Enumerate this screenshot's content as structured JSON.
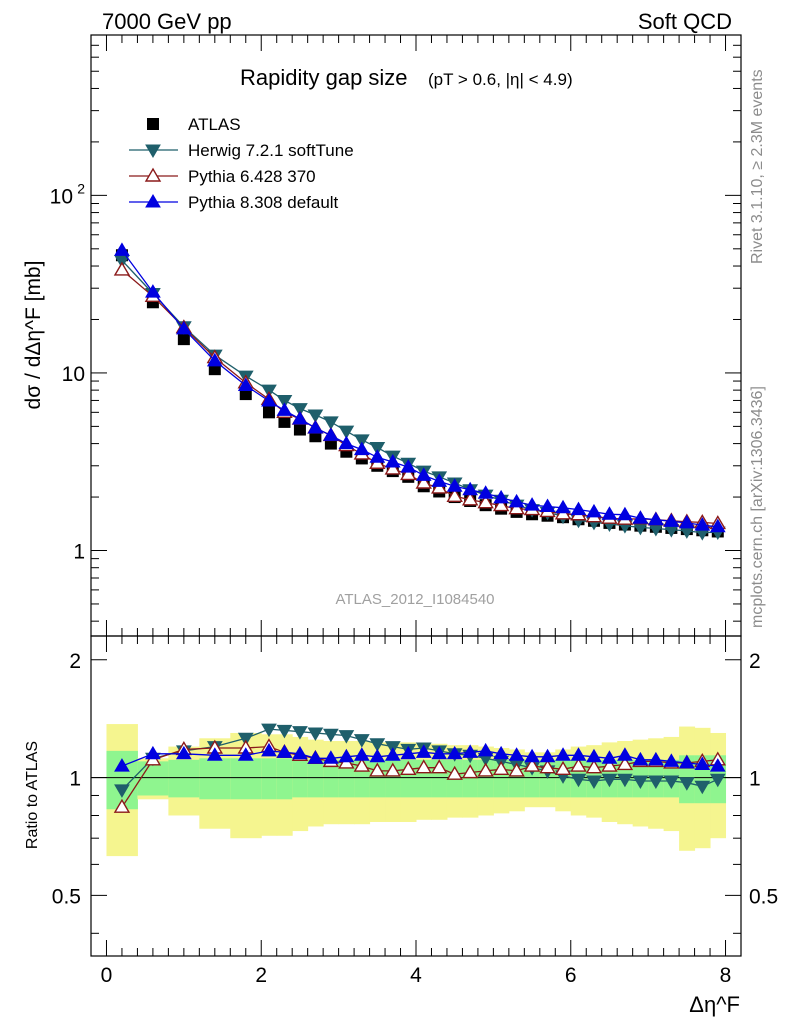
{
  "header": {
    "energy_label": "7000 GeV pp",
    "process_label": "Soft QCD",
    "watermark": "ATLAS_2012_I1084540",
    "side_rivet": "Rivet 3.1.10, ≥ 2.3M events",
    "side_mcplots": "mcplots.cern.ch [arXiv:1306.3436]"
  },
  "colors": {
    "atlas": "#000000",
    "herwig": "#1f5f6b",
    "pythia6": "#8b1a1a",
    "pythia8": "#0000e0",
    "band_inner": "#8ff58f",
    "band_outer": "#f5f58f"
  },
  "chart_data": [
    {
      "type": "scatter",
      "title": "Rapidity gap size",
      "subtitle": "(pT > 0.6, |η| < 4.9)",
      "xlabel": "Δη^F",
      "ylabel": "dσ / dΔη^F [mb]",
      "yscale": "log",
      "xlim": [
        -0.2,
        8.2
      ],
      "ylim": [
        0.33,
        800
      ],
      "yticks": [
        1,
        10,
        100
      ],
      "ytick_labels": [
        "1",
        "10",
        "10^2"
      ],
      "x": [
        0.2,
        0.6,
        1.0,
        1.4,
        1.8,
        2.1,
        2.3,
        2.5,
        2.7,
        2.9,
        3.1,
        3.3,
        3.5,
        3.7,
        3.9,
        4.1,
        4.3,
        4.5,
        4.7,
        4.9,
        5.1,
        5.3,
        5.5,
        5.7,
        5.9,
        6.1,
        6.3,
        6.5,
        6.7,
        6.9,
        7.1,
        7.3,
        7.5,
        7.7,
        7.9
      ],
      "series": [
        {
          "name": "ATLAS",
          "marker": "square",
          "values": [
            46,
            25,
            15.5,
            10.5,
            7.6,
            6.0,
            5.3,
            4.8,
            4.4,
            4.0,
            3.6,
            3.3,
            3.0,
            2.8,
            2.6,
            2.3,
            2.15,
            2.0,
            1.9,
            1.8,
            1.72,
            1.65,
            1.6,
            1.57,
            1.54,
            1.5,
            1.47,
            1.43,
            1.4,
            1.38,
            1.36,
            1.34,
            1.32,
            1.3,
            1.28
          ]
        },
        {
          "name": "Herwig 7.2.1 softTune",
          "marker": "triangle-down",
          "values": [
            43,
            28,
            18.2,
            12.6,
            9.6,
            8.0,
            7.0,
            6.3,
            5.8,
            5.3,
            4.7,
            4.2,
            3.8,
            3.4,
            3.1,
            2.8,
            2.6,
            2.4,
            2.2,
            2.05,
            1.92,
            1.8,
            1.7,
            1.64,
            1.56,
            1.48,
            1.44,
            1.41,
            1.38,
            1.35,
            1.33,
            1.31,
            1.29,
            1.26,
            1.27
          ]
        },
        {
          "name": "Pythia 6.428 370",
          "marker": "triangle-up-open",
          "values": [
            38,
            27,
            18.0,
            12.2,
            8.8,
            7.1,
            6.0,
            5.5,
            4.9,
            4.45,
            3.9,
            3.5,
            3.1,
            2.88,
            2.68,
            2.4,
            2.25,
            2.02,
            1.93,
            1.86,
            1.79,
            1.72,
            1.7,
            1.66,
            1.61,
            1.59,
            1.55,
            1.52,
            1.5,
            1.51,
            1.49,
            1.47,
            1.45,
            1.44,
            1.42
          ]
        },
        {
          "name": "Pythia 8.308 default",
          "marker": "triangle-up",
          "values": [
            49,
            28.5,
            17.7,
            11.7,
            8.5,
            6.95,
            6.15,
            5.5,
            4.9,
            4.45,
            4.0,
            3.7,
            3.35,
            3.15,
            2.95,
            2.65,
            2.45,
            2.3,
            2.2,
            2.1,
            1.98,
            1.88,
            1.8,
            1.77,
            1.74,
            1.7,
            1.65,
            1.6,
            1.59,
            1.52,
            1.49,
            1.46,
            1.43,
            1.39,
            1.36
          ]
        }
      ]
    },
    {
      "type": "scatter",
      "ylabel": "Ratio to ATLAS",
      "xlabel": "Δη^F",
      "xlim": [
        -0.2,
        8.2
      ],
      "ylim": [
        0.35,
        2.3
      ],
      "yticks": [
        0.5,
        1,
        2
      ],
      "ytick_labels": [
        "0.5",
        "1",
        "2"
      ],
      "xticks": [
        0,
        2,
        4,
        6,
        8
      ],
      "xtick_labels": [
        "0",
        "2",
        "4",
        "6",
        "8"
      ],
      "x": [
        0.2,
        0.6,
        1.0,
        1.4,
        1.8,
        2.1,
        2.3,
        2.5,
        2.7,
        2.9,
        3.1,
        3.3,
        3.5,
        3.7,
        3.9,
        4.1,
        4.3,
        4.5,
        4.7,
        4.9,
        5.1,
        5.3,
        5.5,
        5.7,
        5.9,
        6.1,
        6.3,
        6.5,
        6.7,
        6.9,
        7.1,
        7.3,
        7.5,
        7.7,
        7.9
      ],
      "bin_edges": [
        0.0,
        0.4,
        0.8,
        1.2,
        1.6,
        2.0,
        2.2,
        2.4,
        2.6,
        2.8,
        3.0,
        3.2,
        3.4,
        3.6,
        3.8,
        4.0,
        4.2,
        4.4,
        4.6,
        4.8,
        5.0,
        5.2,
        5.4,
        5.6,
        5.8,
        6.0,
        6.2,
        6.4,
        6.6,
        6.8,
        7.0,
        7.2,
        7.4,
        7.6,
        7.8,
        8.0
      ],
      "band_inner": [
        0.17,
        0.1,
        0.11,
        0.12,
        0.12,
        0.12,
        0.12,
        0.11,
        0.11,
        0.11,
        0.11,
        0.11,
        0.11,
        0.11,
        0.11,
        0.11,
        0.11,
        0.11,
        0.11,
        0.11,
        0.11,
        0.11,
        0.11,
        0.11,
        0.11,
        0.11,
        0.11,
        0.11,
        0.11,
        0.11,
        0.11,
        0.11,
        0.14,
        0.14,
        0.14
      ],
      "band_outer": [
        0.37,
        0.12,
        0.2,
        0.26,
        0.3,
        0.29,
        0.29,
        0.27,
        0.25,
        0.24,
        0.24,
        0.24,
        0.23,
        0.23,
        0.23,
        0.22,
        0.22,
        0.21,
        0.21,
        0.2,
        0.19,
        0.18,
        0.16,
        0.16,
        0.18,
        0.2,
        0.21,
        0.23,
        0.24,
        0.25,
        0.26,
        0.27,
        0.35,
        0.34,
        0.3
      ],
      "series": [
        {
          "name": "Herwig 7.2.1 softTune",
          "marker": "triangle-down",
          "values": [
            0.93,
            1.12,
            1.17,
            1.2,
            1.26,
            1.33,
            1.32,
            1.31,
            1.3,
            1.29,
            1.28,
            1.25,
            1.22,
            1.2,
            1.18,
            1.19,
            1.17,
            1.15,
            1.14,
            1.12,
            1.1,
            1.08,
            1.06,
            1.04,
            1.01,
            0.99,
            0.98,
            0.99,
            0.99,
            0.98,
            0.98,
            0.98,
            0.97,
            0.95,
            0.99
          ]
        },
        {
          "name": "Pythia 6.428 370",
          "marker": "triangle-up-open",
          "values": [
            0.84,
            1.11,
            1.18,
            1.19,
            1.19,
            1.2,
            1.16,
            1.14,
            1.12,
            1.1,
            1.09,
            1.07,
            1.04,
            1.04,
            1.05,
            1.06,
            1.06,
            1.02,
            1.03,
            1.04,
            1.05,
            1.04,
            1.07,
            1.06,
            1.05,
            1.07,
            1.06,
            1.07,
            1.08,
            1.1,
            1.1,
            1.09,
            1.09,
            1.1,
            1.11
          ]
        },
        {
          "name": "Pythia 8.308 default",
          "marker": "triangle-up",
          "values": [
            1.07,
            1.15,
            1.15,
            1.14,
            1.14,
            1.17,
            1.16,
            1.15,
            1.12,
            1.12,
            1.13,
            1.14,
            1.13,
            1.14,
            1.15,
            1.16,
            1.15,
            1.15,
            1.16,
            1.17,
            1.15,
            1.14,
            1.13,
            1.13,
            1.14,
            1.14,
            1.13,
            1.12,
            1.14,
            1.11,
            1.11,
            1.1,
            1.09,
            1.08,
            1.07
          ]
        }
      ]
    }
  ]
}
